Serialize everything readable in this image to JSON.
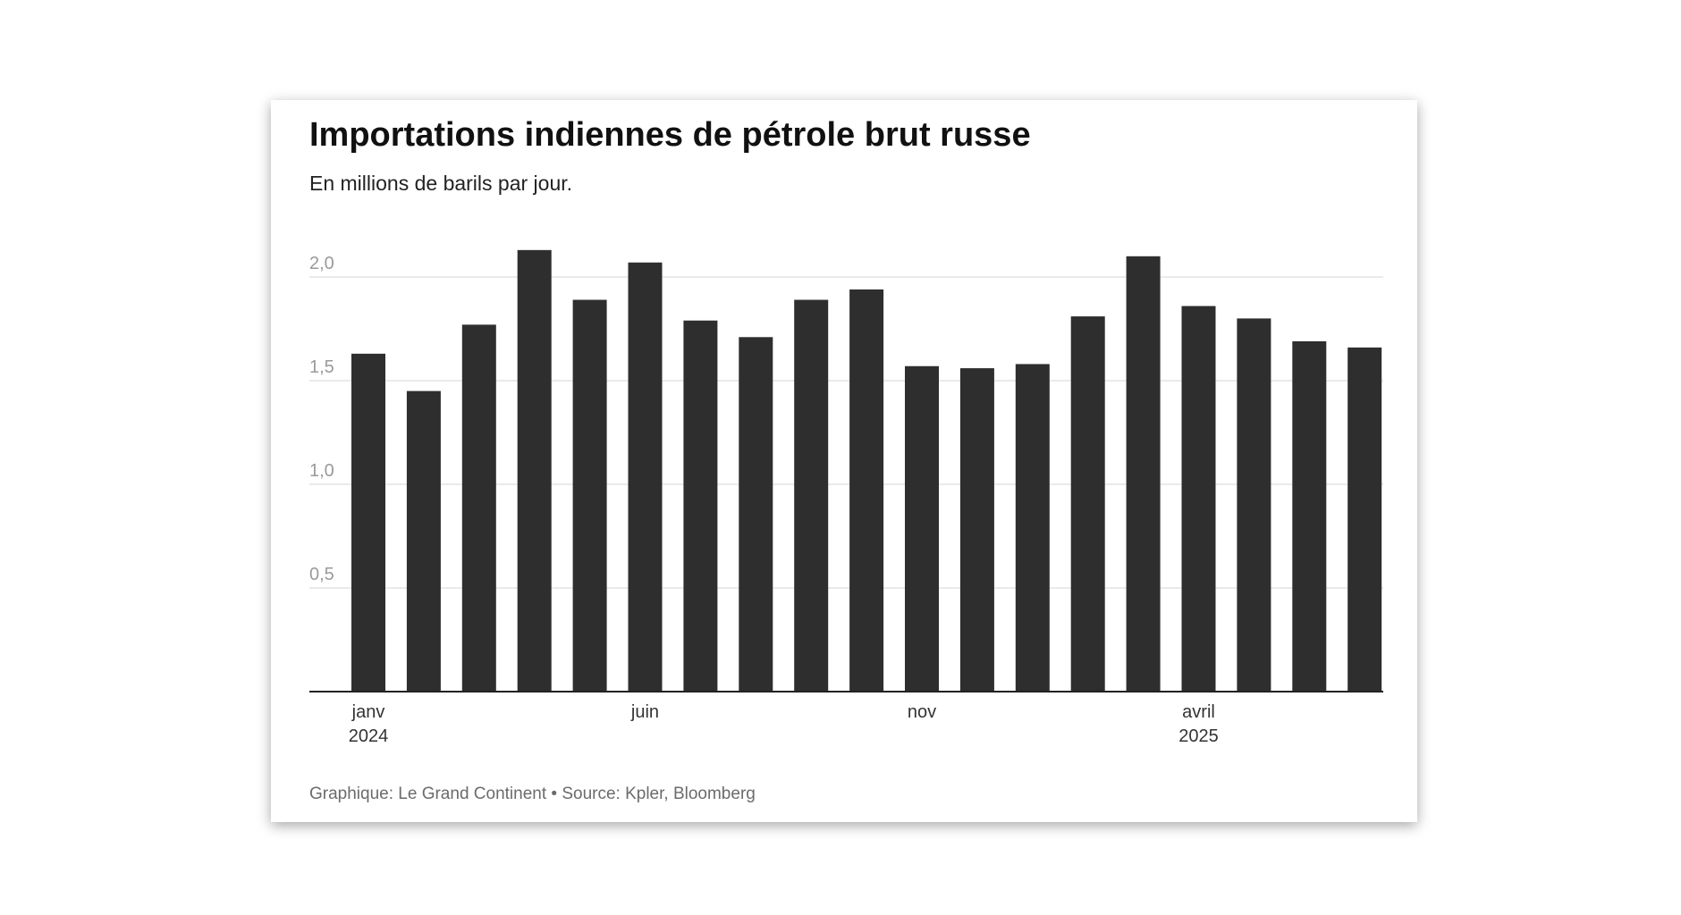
{
  "chart_data": {
    "type": "bar",
    "title": "Importations indiennes de pétrole brut russe",
    "subtitle": "En millions de barils par jour.",
    "xlabel": "",
    "ylabel": "",
    "ylim": [
      0,
      2.0
    ],
    "yticks": [
      {
        "value": 0.5,
        "label": "0,5"
      },
      {
        "value": 1.0,
        "label": "1,0"
      },
      {
        "value": 1.5,
        "label": "1,5"
      },
      {
        "value": 2.0,
        "label": "2,0"
      }
    ],
    "grid": true,
    "categories": [
      "2024-01",
      "2024-02",
      "2024-03",
      "2024-04",
      "2024-05",
      "2024-06",
      "2024-07",
      "2024-08",
      "2024-09",
      "2024-10",
      "2024-11",
      "2024-12",
      "2025-01",
      "2025-02",
      "2025-03",
      "2025-04",
      "2025-05",
      "2025-06",
      "2025-07"
    ],
    "values": [
      1.63,
      1.45,
      1.77,
      2.13,
      1.89,
      2.07,
      1.79,
      1.71,
      1.89,
      1.94,
      1.57,
      1.56,
      1.58,
      1.81,
      2.1,
      1.86,
      1.8,
      1.69,
      1.66
    ],
    "xtick_labels": [
      {
        "index": 0,
        "lines": [
          "janv",
          "2024"
        ]
      },
      {
        "index": 5,
        "lines": [
          "juin"
        ]
      },
      {
        "index": 10,
        "lines": [
          "nov"
        ]
      },
      {
        "index": 15,
        "lines": [
          "avril",
          "2025"
        ]
      }
    ],
    "bar_color": "#2e2e2e",
    "source": "Graphique: Le Grand Continent • Source: Kpler, Bloomberg"
  }
}
